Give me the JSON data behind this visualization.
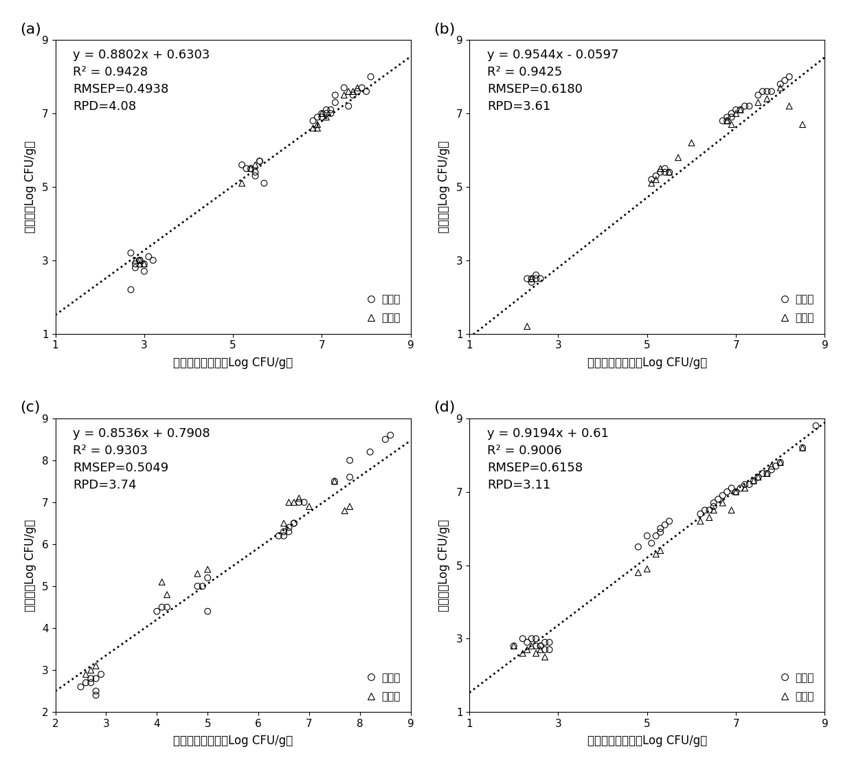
{
  "panels": [
    {
      "label": "(a)",
      "equation": "y = 0.8802x + 0.6303",
      "r2": "R² = 0.9428",
      "rmsep": "RMSEP=0.4938",
      "rpd": "RPD=4.08",
      "slope": 0.8802,
      "intercept": 0.6303,
      "xlim": [
        1,
        9
      ],
      "ylim": [
        1,
        9
      ],
      "xticks": [
        1,
        3,
        5,
        7,
        9
      ],
      "yticks": [
        1,
        3,
        5,
        7,
        9
      ],
      "calibration_x": [
        2.7,
        2.8,
        2.8,
        2.9,
        2.9,
        2.9,
        3.0,
        3.0,
        3.1,
        3.2,
        2.7,
        5.2,
        5.3,
        5.4,
        5.5,
        5.5,
        5.6,
        5.6,
        5.7,
        6.8,
        6.9,
        7.0,
        7.0,
        7.1,
        7.1,
        7.2,
        7.2,
        7.3,
        7.3,
        7.5,
        7.6,
        7.7,
        7.8,
        7.9,
        8.0,
        8.1
      ],
      "calibration_y": [
        3.2,
        2.8,
        2.9,
        3.0,
        3.0,
        3.0,
        2.9,
        2.7,
        3.1,
        3.0,
        2.2,
        5.6,
        5.5,
        5.5,
        5.4,
        5.3,
        5.7,
        5.7,
        5.1,
        6.8,
        6.9,
        6.9,
        7.0,
        7.0,
        7.1,
        7.0,
        7.1,
        7.3,
        7.5,
        7.7,
        7.2,
        7.5,
        7.6,
        7.7,
        7.6,
        8.0
      ],
      "prediction_x": [
        2.8,
        2.9,
        2.9,
        3.0,
        5.2,
        5.4,
        5.5,
        6.8,
        6.9,
        7.0,
        7.1,
        7.5,
        7.6,
        7.7,
        7.8,
        6.9
      ],
      "prediction_y": [
        3.0,
        3.0,
        2.9,
        2.9,
        5.1,
        5.5,
        5.6,
        6.6,
        6.7,
        7.0,
        6.9,
        7.5,
        7.6,
        7.6,
        7.7,
        6.6
      ]
    },
    {
      "label": "(b)",
      "equation": "y = 0.9544x - 0.0597",
      "r2": "R² = 0.9425",
      "rmsep": "RMSEP=0.6180",
      "rpd": "RPD=3.61",
      "slope": 0.9544,
      "intercept": -0.0597,
      "xlim": [
        1,
        9
      ],
      "ylim": [
        1,
        9
      ],
      "xticks": [
        1,
        3,
        5,
        7,
        9
      ],
      "yticks": [
        1,
        3,
        5,
        7,
        9
      ],
      "calibration_x": [
        2.3,
        2.4,
        2.4,
        2.5,
        2.5,
        2.6,
        5.1,
        5.2,
        5.3,
        5.4,
        5.4,
        5.5,
        6.7,
        6.8,
        6.8,
        6.9,
        6.9,
        7.0,
        7.1,
        7.2,
        7.3,
        7.5,
        7.6,
        7.7,
        7.8,
        8.0,
        8.1,
        8.2
      ],
      "calibration_y": [
        2.5,
        2.4,
        2.5,
        2.6,
        2.5,
        2.5,
        5.2,
        5.3,
        5.4,
        5.5,
        5.4,
        5.4,
        6.8,
        6.8,
        6.9,
        6.9,
        7.0,
        7.1,
        7.1,
        7.2,
        7.2,
        7.5,
        7.6,
        7.6,
        7.6,
        7.8,
        7.9,
        8.0
      ],
      "prediction_x": [
        2.3,
        2.4,
        5.1,
        5.2,
        5.3,
        5.5,
        5.7,
        6.0,
        6.8,
        6.9,
        7.0,
        7.1,
        7.5,
        7.7,
        8.0,
        8.2,
        8.5
      ],
      "prediction_y": [
        1.2,
        2.5,
        5.1,
        5.2,
        5.5,
        5.4,
        5.8,
        6.2,
        6.8,
        6.7,
        7.0,
        7.1,
        7.3,
        7.4,
        7.7,
        7.2,
        6.7
      ]
    },
    {
      "label": "(c)",
      "equation": "y = 0.8536x + 0.7908",
      "r2": "R² = 0.9303",
      "rmsep": "RMSEP=0.5049",
      "rpd": "RPD=3.74",
      "slope": 0.8536,
      "intercept": 0.7908,
      "xlim": [
        2,
        9
      ],
      "ylim": [
        2,
        9
      ],
      "xticks": [
        2,
        3,
        4,
        5,
        6,
        7,
        8,
        9
      ],
      "yticks": [
        2,
        3,
        4,
        5,
        6,
        7,
        8,
        9
      ],
      "calibration_x": [
        2.5,
        2.6,
        2.7,
        2.7,
        2.8,
        2.8,
        2.8,
        2.9,
        4.0,
        4.1,
        4.2,
        4.8,
        4.9,
        5.0,
        5.0,
        6.4,
        6.5,
        6.5,
        6.6,
        6.6,
        6.7,
        6.7,
        6.8,
        6.9,
        7.5,
        7.8,
        7.8,
        8.2,
        8.5,
        8.6
      ],
      "calibration_y": [
        2.6,
        2.7,
        2.7,
        2.8,
        2.8,
        2.5,
        2.4,
        2.9,
        4.4,
        4.5,
        4.5,
        5.0,
        5.0,
        5.2,
        4.4,
        6.2,
        6.3,
        6.2,
        6.3,
        6.4,
        6.5,
        6.5,
        7.0,
        7.0,
        7.5,
        7.6,
        8.0,
        8.2,
        8.5,
        8.6
      ],
      "prediction_x": [
        2.6,
        2.7,
        2.8,
        4.1,
        4.2,
        4.8,
        5.0,
        6.5,
        6.6,
        6.7,
        6.8,
        7.0,
        7.5,
        7.7,
        7.8
      ],
      "prediction_y": [
        2.9,
        3.0,
        3.1,
        5.1,
        4.8,
        5.3,
        5.4,
        6.5,
        7.0,
        7.0,
        7.1,
        6.9,
        7.5,
        6.8,
        6.9
      ]
    },
    {
      "label": "(d)",
      "equation": "y = 0.9194x + 0.61",
      "r2": "R² = 0.9006",
      "rmsep": "RMSEP=0.6158",
      "rpd": "RPD=3.11",
      "slope": 0.9194,
      "intercept": 0.61,
      "xlim": [
        1,
        9
      ],
      "ylim": [
        1,
        9
      ],
      "xticks": [
        1,
        3,
        5,
        7,
        9
      ],
      "yticks": [
        1,
        3,
        5,
        7,
        9
      ],
      "calibration_x": [
        2.0,
        2.2,
        2.3,
        2.4,
        2.5,
        2.5,
        2.6,
        2.6,
        2.7,
        2.7,
        2.8,
        2.8,
        4.8,
        5.0,
        5.1,
        5.2,
        5.3,
        5.3,
        5.4,
        5.5,
        6.2,
        6.3,
        6.4,
        6.5,
        6.5,
        6.6,
        6.7,
        6.8,
        6.9,
        7.0,
        7.1,
        7.2,
        7.3,
        7.4,
        7.5,
        7.6,
        7.7,
        7.8,
        7.9,
        8.0,
        8.5,
        8.8
      ],
      "calibration_y": [
        2.8,
        3.0,
        2.9,
        3.0,
        3.0,
        2.8,
        2.8,
        2.8,
        2.9,
        2.7,
        2.9,
        2.7,
        5.5,
        5.8,
        5.6,
        5.8,
        5.9,
        6.0,
        6.1,
        6.2,
        6.4,
        6.5,
        6.5,
        6.6,
        6.7,
        6.8,
        6.9,
        7.0,
        7.1,
        7.0,
        7.1,
        7.2,
        7.2,
        7.3,
        7.4,
        7.5,
        7.5,
        7.6,
        7.7,
        7.8,
        8.2,
        8.8
      ],
      "prediction_x": [
        2.0,
        2.2,
        2.3,
        2.4,
        2.5,
        2.6,
        2.7,
        4.8,
        5.0,
        5.2,
        5.3,
        6.2,
        6.4,
        6.5,
        6.7,
        6.9,
        7.0,
        7.2,
        7.4,
        7.5,
        7.7,
        7.8,
        8.0,
        8.5
      ],
      "prediction_y": [
        2.8,
        2.6,
        2.7,
        2.8,
        2.6,
        2.7,
        2.5,
        4.8,
        4.9,
        5.3,
        5.4,
        6.2,
        6.3,
        6.5,
        6.7,
        6.5,
        7.0,
        7.1,
        7.3,
        7.4,
        7.5,
        7.7,
        7.8,
        8.2
      ]
    }
  ],
  "xlabel_ascii": "                       菌落总数真实值（Log CFU/g）",
  "xlabel_part1": "菌落总数真实值",
  "xlabel_part2": "（Log CFU/g）",
  "ylabel_part1": "预测值",
  "ylabel_part2": "（Log CFU/g）",
  "legend_calibration": "建模集",
  "legend_prediction": "预测集",
  "annotation_fontsize": 13,
  "label_fontsize": 12,
  "tick_fontsize": 11,
  "legend_fontsize": 11
}
